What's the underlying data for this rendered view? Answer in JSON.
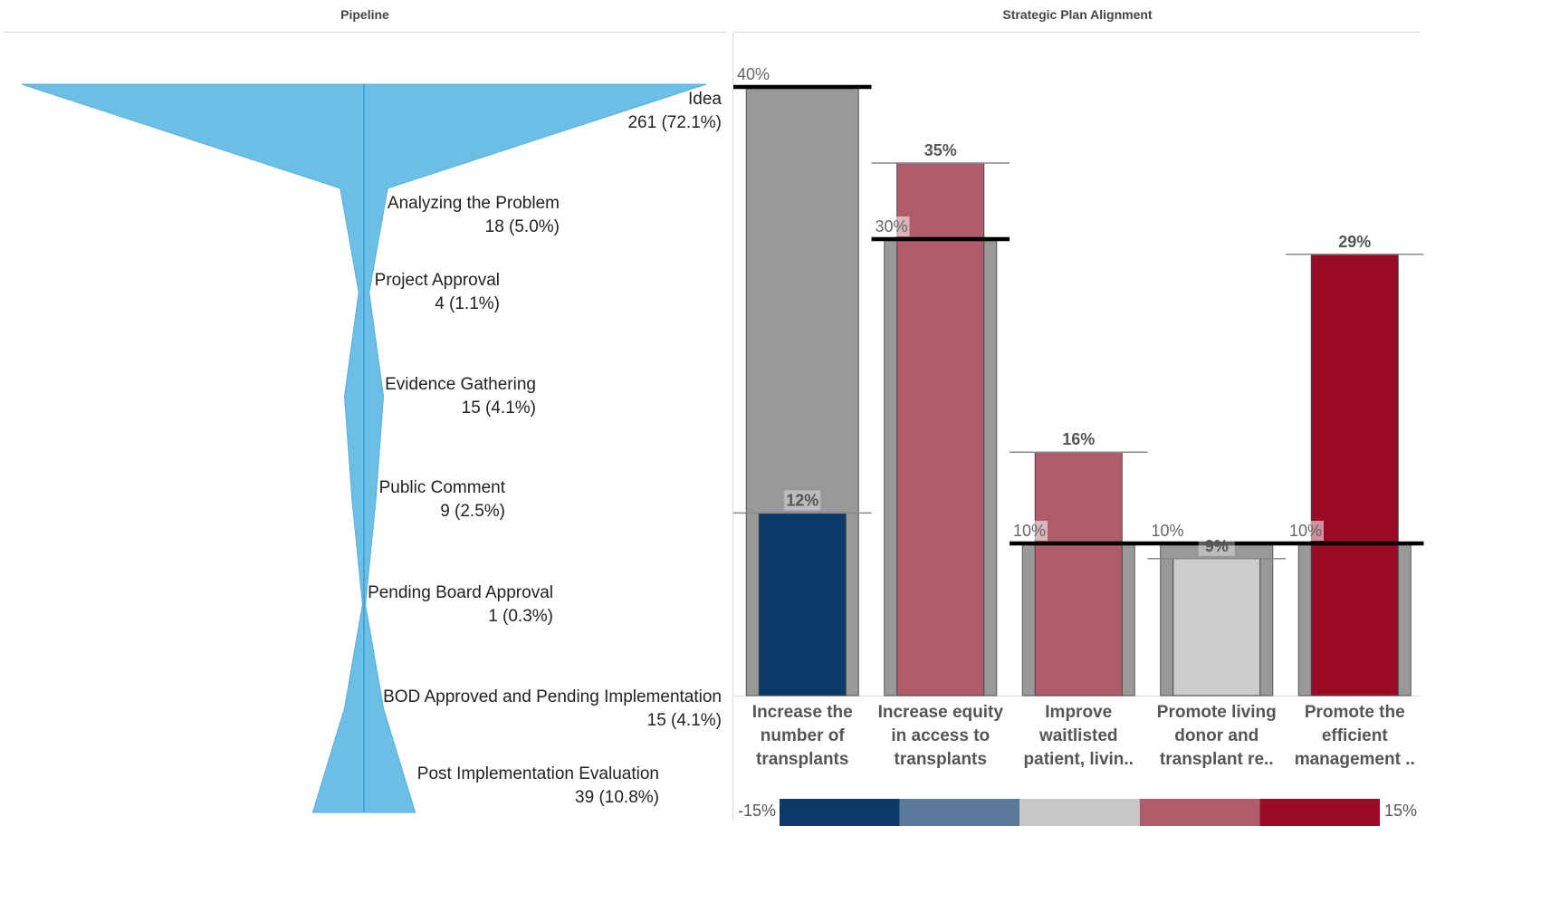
{
  "pipeline": {
    "title": "Pipeline"
  },
  "alignment": {
    "title": "Strategic Plan Alignment"
  },
  "chart_data": [
    {
      "type": "funnel",
      "title": "Pipeline",
      "stages": [
        {
          "name": "Idea",
          "value_label": "261 (72.1%)",
          "count": 261,
          "percent": 72.1
        },
        {
          "name": "Analyzing the Problem",
          "value_label": "18 (5.0%)",
          "count": 18,
          "percent": 5.0
        },
        {
          "name": "Project Approval",
          "value_label": "4 (1.1%)",
          "count": 4,
          "percent": 1.1
        },
        {
          "name": "Evidence Gathering",
          "value_label": "15 (4.1%)",
          "count": 15,
          "percent": 4.1
        },
        {
          "name": "Public Comment",
          "value_label": "9 (2.5%)",
          "count": 9,
          "percent": 2.5
        },
        {
          "name": "Pending Board Approval",
          "value_label": "1 (0.3%)",
          "count": 1,
          "percent": 0.3
        },
        {
          "name": "BOD Approved and Pending Implementation",
          "value_label": "15 (4.1%)",
          "count": 15,
          "percent": 4.1
        },
        {
          "name": "Post Implementation Evaluation",
          "value_label": "39 (10.8%)",
          "count": 39,
          "percent": 10.8
        }
      ],
      "color": "#6bbfe6"
    },
    {
      "type": "bar",
      "title": "Strategic Plan Alignment",
      "categories": [
        [
          "Increase the",
          "number of",
          "transplants"
        ],
        [
          "Increase equity",
          "in access to",
          "transplants"
        ],
        [
          "Improve",
          "waitlisted",
          "patient, livin.."
        ],
        [
          "Promote living",
          "donor and",
          "transplant re.."
        ],
        [
          "Promote the",
          "efficient",
          "management .."
        ]
      ],
      "series": [
        {
          "values": [
            40,
            30,
            10,
            10,
            10
          ],
          "labels": [
            "40%",
            "30%",
            "10%",
            "10%",
            "10%"
          ],
          "color": "#999999"
        },
        {
          "values": [
            12,
            35,
            16,
            9,
            29
          ],
          "labels": [
            "12%",
            "35%",
            "16%",
            "9%",
            "29%"
          ],
          "colors": [
            "#0b3a6a",
            "#b05c6c",
            "#b05c6c",
            "#cccccc",
            "#9b0a24"
          ]
        }
      ],
      "ylim": [
        0,
        40
      ],
      "color_scale": {
        "min_label": "-15%",
        "max_label": "15%",
        "colors": [
          "#0b3a6a",
          "#597a9a",
          "#c8c8c8",
          "#b05c6c",
          "#9b0a24"
        ]
      }
    }
  ]
}
